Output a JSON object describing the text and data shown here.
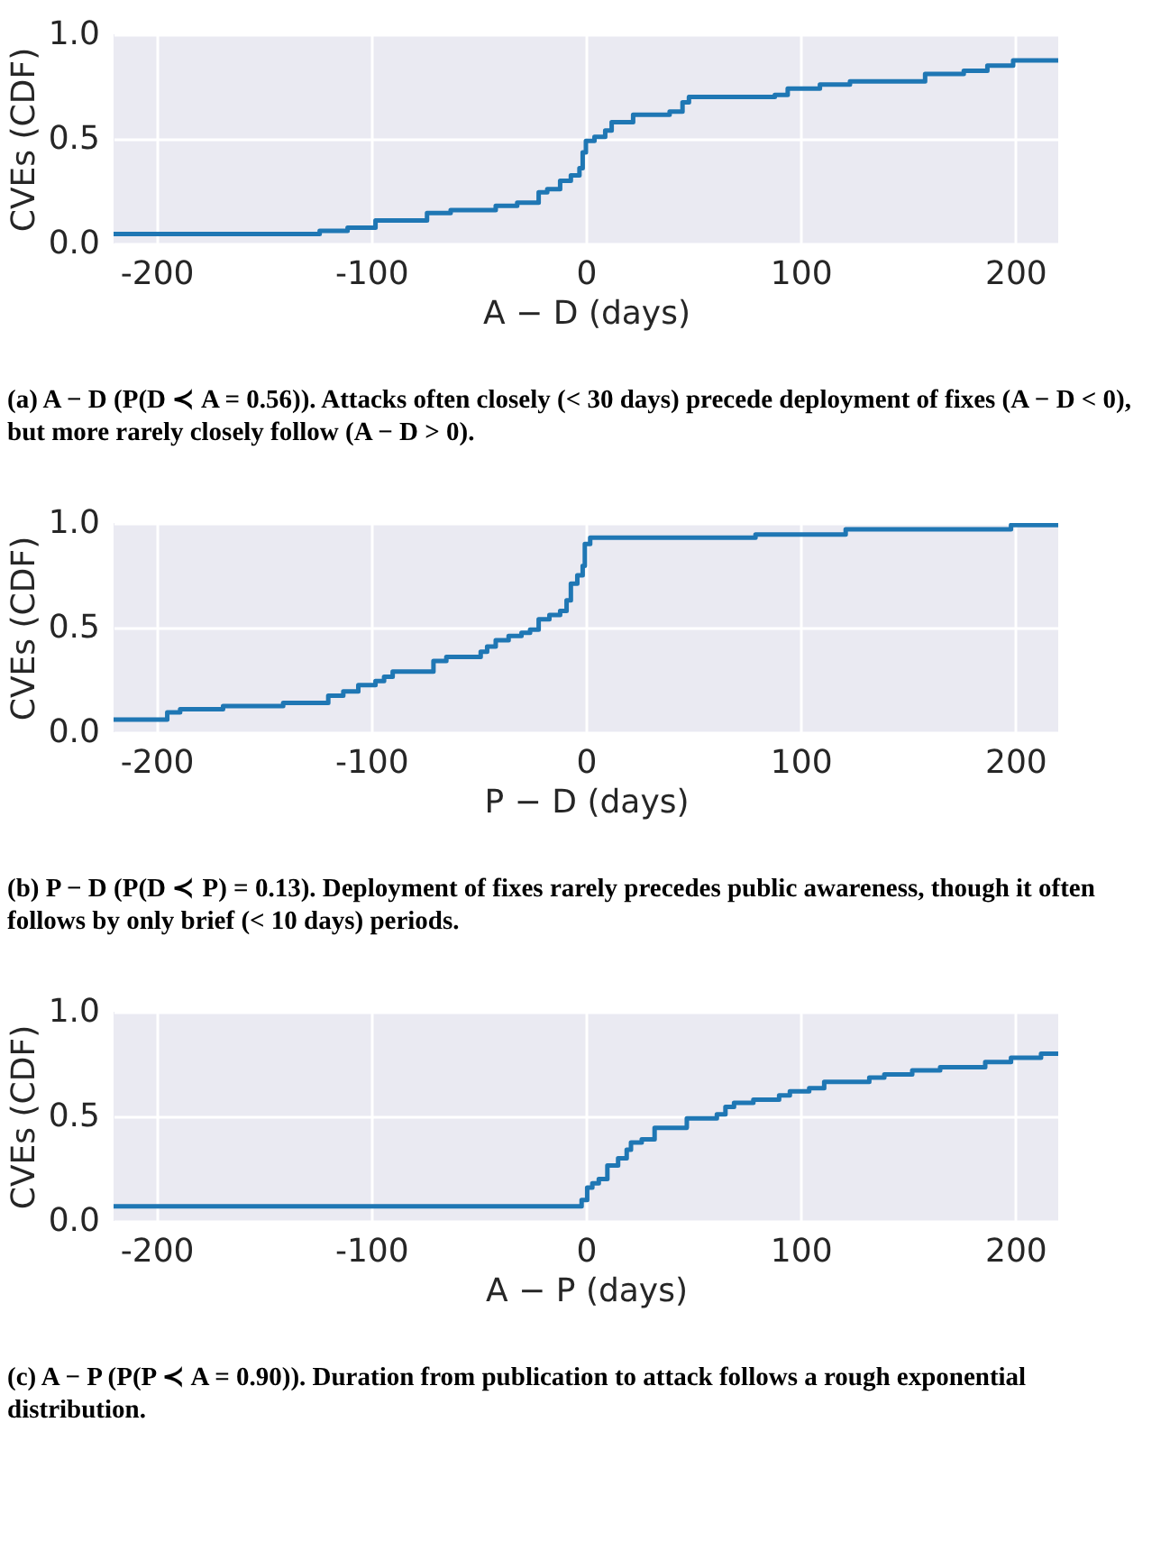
{
  "chart_data": [
    {
      "type": "step",
      "xlabel": "A − D (days)",
      "ylabel": "CVEs (CDF)",
      "color": "#1f77b4",
      "grid": true,
      "xlim": [
        -220,
        220
      ],
      "ylim": [
        0,
        1
      ],
      "xticks": [
        -200,
        -100,
        0,
        100,
        200
      ],
      "yticks": [
        {
          "value": 0,
          "label": "0.0"
        },
        {
          "value": 0.5,
          "label": "0.5"
        },
        {
          "value": 1,
          "label": "1.0"
        }
      ],
      "x": [
        -220,
        -124,
        -111,
        -98,
        -74,
        -63,
        -42,
        -32,
        -22,
        -18,
        -12,
        -7,
        -3,
        -1.5,
        0,
        4,
        9,
        12,
        22,
        39,
        45,
        48,
        88,
        94,
        109,
        123,
        158,
        176,
        187,
        199,
        220
      ],
      "values": [
        0.045,
        0.06,
        0.075,
        0.11,
        0.145,
        0.16,
        0.18,
        0.195,
        0.245,
        0.26,
        0.3,
        0.325,
        0.36,
        0.435,
        0.49,
        0.51,
        0.54,
        0.58,
        0.615,
        0.63,
        0.675,
        0.7,
        0.71,
        0.74,
        0.76,
        0.775,
        0.81,
        0.825,
        0.85,
        0.875,
        0.875
      ],
      "annotations": [
        "(a) A − D (P(D ≺ A = 0.56)). Attacks often closely (< 30 days) precede deployment of fixes (A − D < 0), but more rarely closely follow (A − D > 0)."
      ]
    },
    {
      "type": "step",
      "xlabel": "P − D (days)",
      "ylabel": "CVEs (CDF)",
      "color": "#1f77b4",
      "grid": true,
      "xlim": [
        -220,
        220
      ],
      "ylim": [
        0,
        1
      ],
      "xticks": [
        -200,
        -100,
        0,
        100,
        200
      ],
      "yticks": [
        {
          "value": 0,
          "label": "0.0"
        },
        {
          "value": 0.5,
          "label": "0.5"
        },
        {
          "value": 1,
          "label": "1.0"
        }
      ],
      "x": [
        -220,
        -195,
        -189,
        -169,
        -141,
        -120,
        -113,
        -106,
        -98,
        -94,
        -90,
        -71,
        -65,
        -49,
        -46,
        -42,
        -36,
        -30,
        -26,
        -22,
        -17,
        -12,
        -9,
        -7,
        -4,
        -1.5,
        -0.5,
        2,
        79,
        121,
        198,
        220
      ],
      "values": [
        0.06,
        0.095,
        0.11,
        0.125,
        0.14,
        0.175,
        0.195,
        0.225,
        0.245,
        0.265,
        0.29,
        0.34,
        0.36,
        0.385,
        0.41,
        0.44,
        0.46,
        0.475,
        0.49,
        0.54,
        0.56,
        0.58,
        0.63,
        0.71,
        0.75,
        0.795,
        0.9,
        0.93,
        0.945,
        0.97,
        0.99,
        0.99
      ],
      "annotations": [
        "(b) P − D (P(D ≺ P) = 0.13). Deployment of fixes rarely precedes public awareness, though it often follows by only brief (< 10 days) periods."
      ]
    },
    {
      "type": "step",
      "xlabel": "A − P (days)",
      "ylabel": "CVEs (CDF)",
      "color": "#1f77b4",
      "grid": true,
      "xlim": [
        -220,
        220
      ],
      "ylim": [
        0,
        1
      ],
      "xticks": [
        -200,
        -100,
        0,
        100,
        200
      ],
      "yticks": [
        {
          "value": 0,
          "label": "0.0"
        },
        {
          "value": 0.5,
          "label": "0.5"
        },
        {
          "value": 1,
          "label": "1.0"
        }
      ],
      "x": [
        -220,
        -2,
        0.6,
        3,
        6,
        10,
        15,
        19,
        21,
        26,
        32,
        47,
        61,
        65,
        69,
        78,
        90,
        95,
        104,
        111,
        132,
        139,
        152,
        165,
        186,
        198,
        212,
        220
      ],
      "values": [
        0.07,
        0.1,
        0.16,
        0.18,
        0.2,
        0.265,
        0.3,
        0.34,
        0.375,
        0.39,
        0.445,
        0.49,
        0.51,
        0.545,
        0.565,
        0.58,
        0.6,
        0.62,
        0.635,
        0.665,
        0.685,
        0.7,
        0.72,
        0.735,
        0.76,
        0.78,
        0.8,
        0.8
      ],
      "annotations": [
        "(c) A − P (P(P ≺ A = 0.90)). Duration from publication to attack follows a rough exponential distribution."
      ]
    }
  ]
}
